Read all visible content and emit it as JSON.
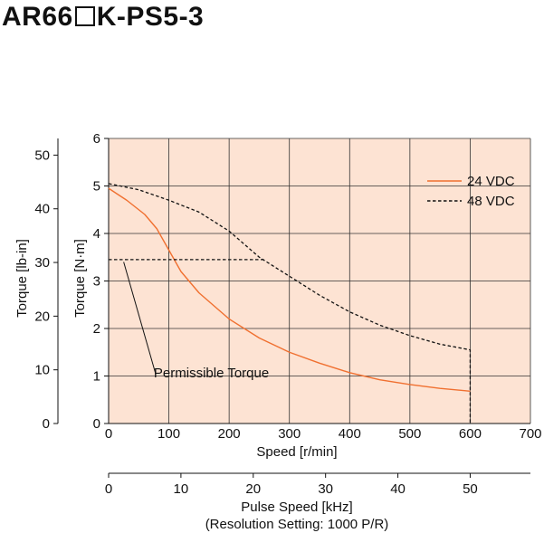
{
  "title": {
    "prefix": "AR66",
    "suffix": "K-PS5-3"
  },
  "chart_data": {
    "type": "line",
    "xlabel": "Speed [r/min]",
    "ylabel": "Torque [N·m]",
    "y2label": "Torque [lb-in]",
    "xlim": [
      0,
      700
    ],
    "ylim": [
      0,
      6
    ],
    "xticks": [
      0,
      100,
      200,
      300,
      400,
      500,
      600,
      700
    ],
    "yticks": [
      0,
      1,
      2,
      3,
      4,
      5,
      6
    ],
    "y2ticks": [
      0,
      10,
      20,
      30,
      40,
      50
    ],
    "grid": true,
    "background": "#fde3d3",
    "legend_position": "top-right",
    "series": [
      {
        "name": "24 VDC",
        "style": "solid",
        "color": "#f07030",
        "x": [
          0,
          30,
          60,
          80,
          100,
          120,
          150,
          200,
          250,
          300,
          350,
          400,
          450,
          500,
          550,
          600
        ],
        "y": [
          4.95,
          4.7,
          4.4,
          4.1,
          3.65,
          3.2,
          2.75,
          2.2,
          1.8,
          1.5,
          1.27,
          1.07,
          0.92,
          0.82,
          0.74,
          0.68
        ]
      },
      {
        "name": "48 VDC",
        "style": "dashed",
        "color": "#111111",
        "x": [
          0,
          50,
          100,
          150,
          200,
          250,
          300,
          350,
          400,
          450,
          500,
          550,
          600,
          600
        ],
        "y": [
          5.05,
          4.92,
          4.7,
          4.45,
          4.05,
          3.5,
          3.1,
          2.7,
          2.35,
          2.07,
          1.85,
          1.67,
          1.55,
          0
        ],
        "permissible_torque": {
          "x": [
            0,
            260
          ],
          "y": [
            3.45,
            3.45
          ]
        }
      }
    ],
    "annotation": {
      "text": "Permissible Torque",
      "points_to": {
        "x": 25,
        "y": 3.4
      },
      "label_at": {
        "x": 90,
        "y": 1.2
      }
    },
    "secondary_x_axis": {
      "label": "Pulse Speed [kHz]",
      "sublabel": "(Resolution Setting: 1000 P/R)",
      "ticks": [
        0,
        10,
        20,
        30,
        40,
        50
      ],
      "xlim": [
        0,
        58.33
      ]
    }
  }
}
